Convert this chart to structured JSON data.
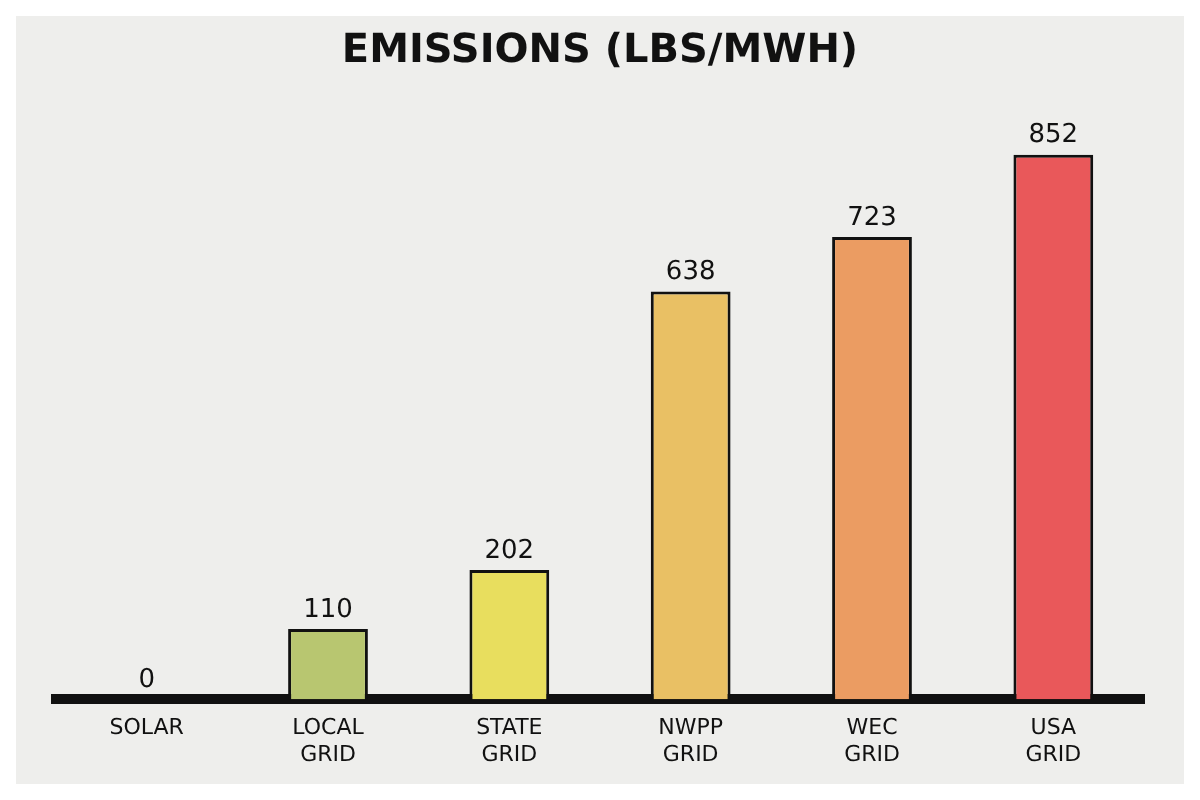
{
  "chart_data": {
    "type": "bar",
    "title": "EMISSIONS (LBS/MWH)",
    "categories": [
      "SOLAR",
      "LOCAL GRID",
      "STATE GRID",
      "NWPP GRID",
      "WEC GRID",
      "USA GRID"
    ],
    "values": [
      0,
      110,
      202,
      638,
      723,
      852
    ],
    "colors": [
      "#7fae6a",
      "#b8c670",
      "#e8de5e",
      "#e9c064",
      "#eb9c62",
      "#e9585a"
    ],
    "data_labels": true,
    "grid": false,
    "legend": false
  }
}
